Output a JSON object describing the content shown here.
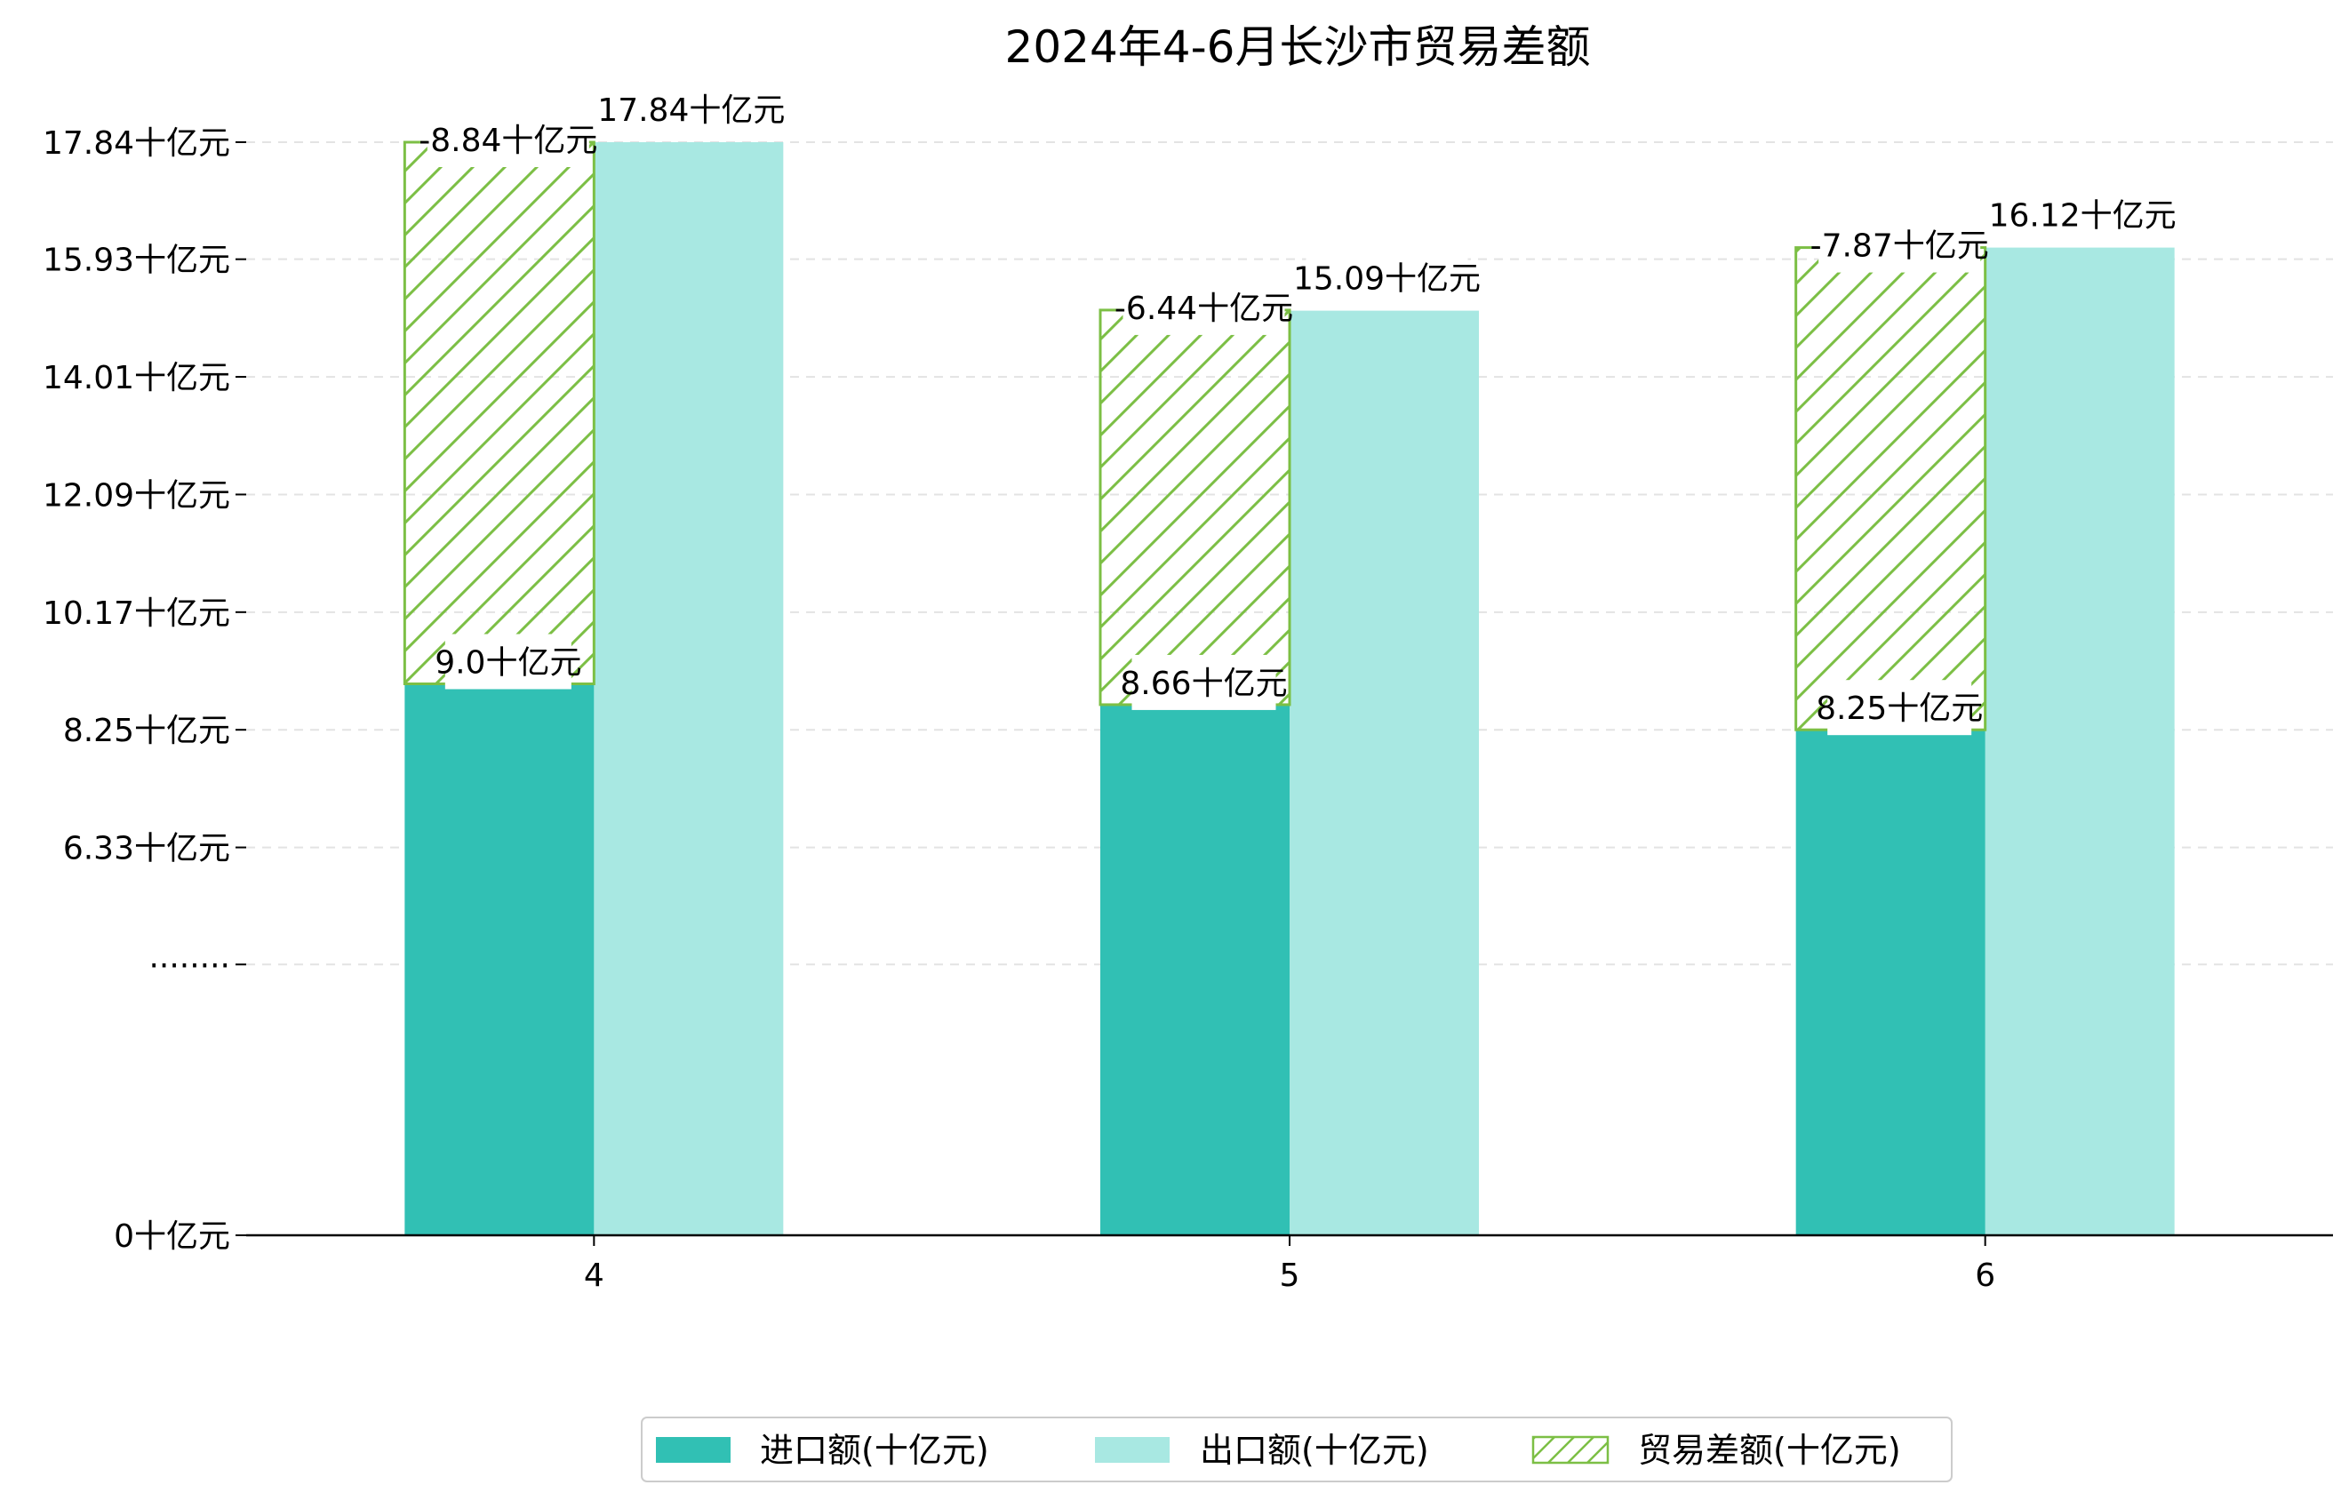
{
  "chart_data": {
    "type": "bar",
    "title": "2024年4-6月长沙市贸易差额",
    "xlabel": "",
    "ylabel": "",
    "categories": [
      "4",
      "5",
      "6"
    ],
    "series": [
      {
        "name": "进口额(十亿元)",
        "values": [
          9.0,
          8.66,
          8.25
        ],
        "labels": [
          "9.0十亿元",
          "8.66十亿元",
          "8.25十亿元"
        ],
        "color": "#31c0b4"
      },
      {
        "name": "出口额(十亿元)",
        "values": [
          17.84,
          15.09,
          16.12
        ],
        "labels": [
          "17.84十亿元",
          "15.09十亿元",
          "16.12十亿元"
        ],
        "color": "#a8e8e2"
      },
      {
        "name": "贸易差额(十亿元)",
        "values": [
          -8.84,
          -6.44,
          -7.87
        ],
        "labels": [
          "-8.84十亿元",
          "-6.44十亿元",
          "-7.87十亿元"
        ],
        "color": "#7cbf45",
        "hatch": true
      }
    ],
    "yticks": [
      {
        "value": 0,
        "label": "0十亿元"
      },
      {
        "value": 4.42,
        "label": "········"
      },
      {
        "value": 6.33,
        "label": "6.33十亿元"
      },
      {
        "value": 8.25,
        "label": "8.25十亿元"
      },
      {
        "value": 10.17,
        "label": "10.17十亿元"
      },
      {
        "value": 12.09,
        "label": "12.09十亿元"
      },
      {
        "value": 14.01,
        "label": "14.01十亿元"
      },
      {
        "value": 15.93,
        "label": "15.93十亿元"
      },
      {
        "value": 17.84,
        "label": "17.84十亿元"
      }
    ],
    "ylim": [
      0,
      18.5
    ],
    "axis_break": true,
    "grid": "horizontal-dashed",
    "legend_position": "bottom-center"
  }
}
